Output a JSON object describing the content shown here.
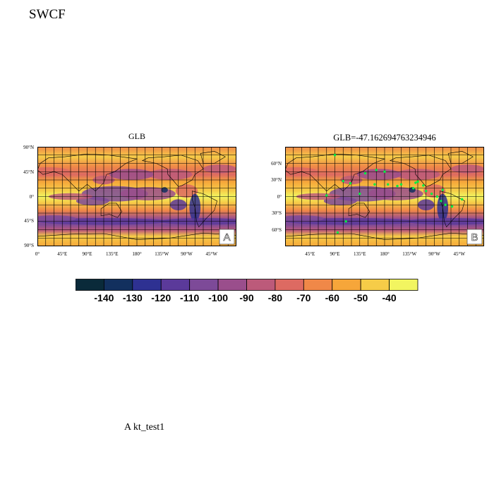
{
  "title": "SWCF",
  "panels": [
    {
      "id": "A",
      "title": "GLB",
      "badge": "A",
      "lat_ticks": [
        "90°N",
        "45°N",
        "0°",
        "45°S",
        "90°S"
      ],
      "lon_ticks": [
        "0°",
        "45°E",
        "90°E",
        "135°E",
        "180°",
        "135°W",
        "90°W",
        "45°W"
      ]
    },
    {
      "id": "B",
      "title": "GLB=-47.16269476323494​6",
      "badge": "B",
      "lat_ticks": [
        "60°N",
        "30°N",
        "0°",
        "30°S",
        "60°S"
      ],
      "lon_ticks": [
        "45°E",
        "90°E",
        "135°E",
        "180°",
        "135°W",
        "90°W",
        "45°W"
      ],
      "station_marker_color": "#00ee44"
    }
  ],
  "colorbar": {
    "colors": [
      "#0a2a3a",
      "#12305e",
      "#2e3192",
      "#5b3a9a",
      "#7d4a98",
      "#9a4e8c",
      "#bc5a7a",
      "#dd6a62",
      "#f08848",
      "#f6a63a",
      "#f6cc48",
      "#f2f560"
    ],
    "labels": [
      "-140",
      "-130",
      "-120",
      "-110",
      "-100",
      "-90",
      "-80",
      "-70",
      "-60",
      "-50",
      "-40"
    ]
  },
  "footer": "A  kt_test1"
}
